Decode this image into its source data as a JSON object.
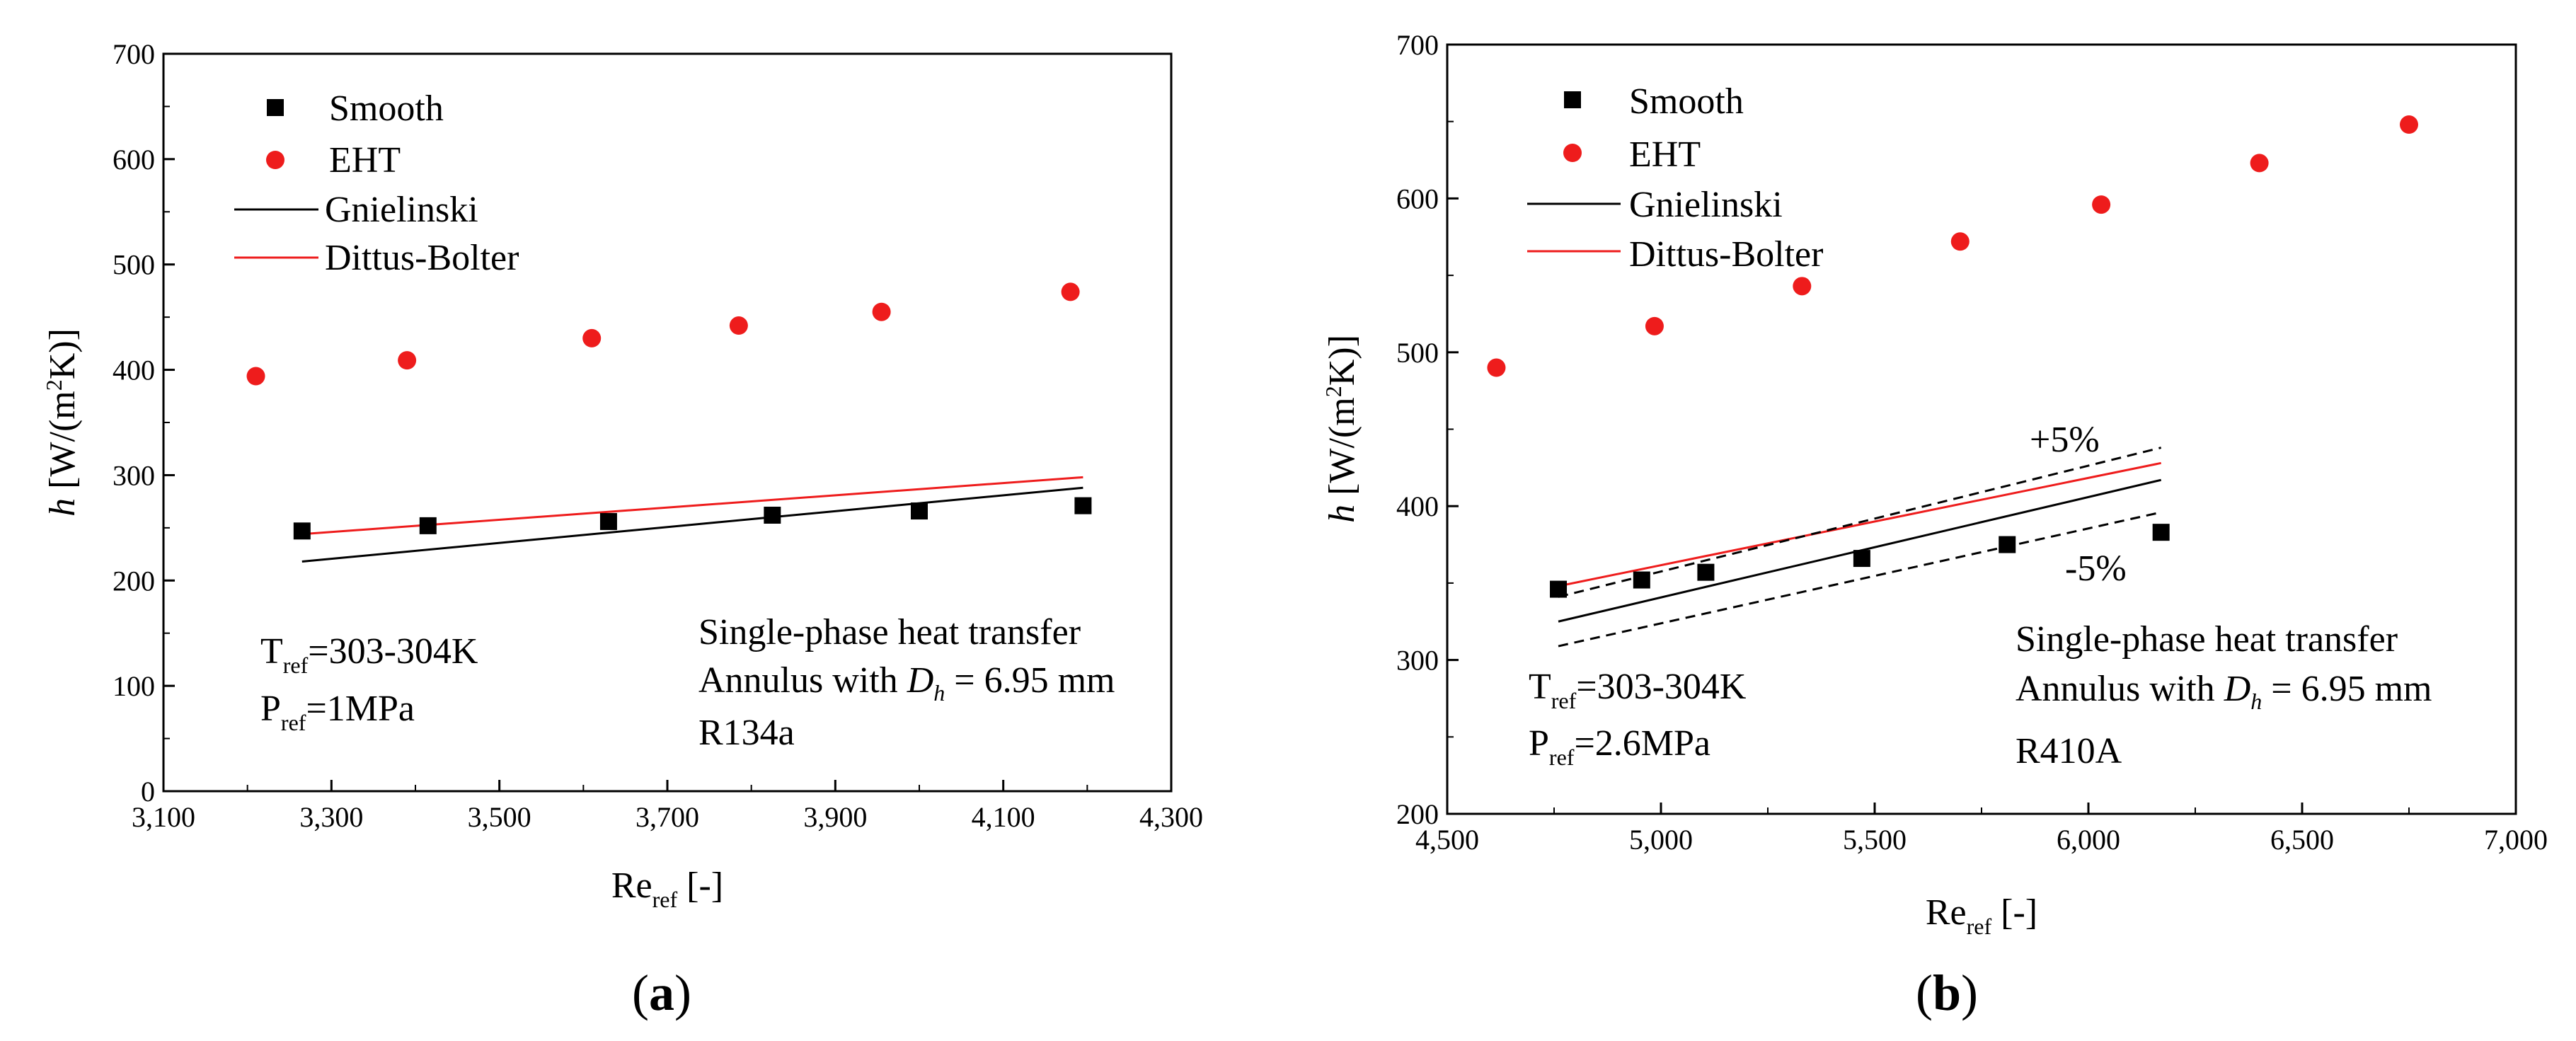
{
  "chart_data": [
    {
      "type": "scatter",
      "panel_label": "a",
      "xlim": [
        3100,
        4300
      ],
      "ylim": [
        0,
        700
      ],
      "xticks": [
        "3,100",
        "3,300",
        "3,500",
        "3,700",
        "3,900",
        "4,100",
        "4,300"
      ],
      "yticks": [
        "0",
        "100",
        "200",
        "300",
        "400",
        "500",
        "600",
        "700"
      ],
      "xlabel": {
        "main": "Re",
        "sub": "ref",
        "unit": " [-]"
      },
      "ylabel": {
        "var": "h",
        "pre": " [W/(m",
        "sup": "2",
        "post": "K)]"
      },
      "legend": {
        "smooth": "Smooth",
        "eht": "EHT",
        "gnielinski": "Gnielinski",
        "dittus": "Dittus-Bolter"
      },
      "series": [
        {
          "name": "Smooth",
          "x": [
            3265,
            3415,
            3630,
            3825,
            4000,
            4195
          ],
          "y": [
            247,
            252,
            256,
            262,
            266,
            271
          ]
        },
        {
          "name": "EHT",
          "x": [
            3210,
            3390,
            3610,
            3785,
            3955,
            4180
          ],
          "y": [
            394,
            409,
            430,
            442,
            455,
            474
          ]
        }
      ],
      "lines": [
        {
          "name": "Gnielinski",
          "x": [
            3265,
            4195
          ],
          "y": [
            218,
            288
          ]
        },
        {
          "name": "Dittus-Bolter",
          "x": [
            3265,
            4195
          ],
          "y": [
            244,
            298
          ]
        }
      ],
      "annotations": {
        "t_pre": "T",
        "t_sub": "ref",
        "t_post": "=303-304K",
        "p_pre": "P",
        "p_sub": "ref",
        "p_post": "=1MPa",
        "line1": "Single-phase heat transfer",
        "line2_pre": "Annulus with ",
        "line2_var": "D",
        "line2_sub": "h",
        "line2_post": " = 6.95 mm",
        "fluid": "R134a"
      }
    },
    {
      "type": "scatter",
      "panel_label": "b",
      "xlim": [
        4500,
        7000
      ],
      "ylim": [
        200,
        700
      ],
      "xticks": [
        "4,500",
        "5,000",
        "5,500",
        "6,000",
        "6,500",
        "7,000"
      ],
      "yticks": [
        "200",
        "300",
        "400",
        "500",
        "600",
        "700"
      ],
      "xlabel": {
        "main": "Re",
        "sub": "ref",
        "unit": " [-]"
      },
      "ylabel": {
        "var": "h",
        "pre": " [W/(m",
        "sup": "2",
        "post": "K)]"
      },
      "legend": {
        "smooth": "Smooth",
        "eht": "EHT",
        "gnielinski": "Gnielinski",
        "dittus": "Dittus-Bolter"
      },
      "series": [
        {
          "name": "Smooth",
          "x": [
            4760,
            4955,
            5105,
            5470,
            5810,
            6170
          ],
          "y": [
            346,
            352,
            357,
            366,
            375,
            383
          ]
        },
        {
          "name": "EHT",
          "x": [
            4615,
            4985,
            5330,
            5700,
            6030,
            6400,
            6750
          ],
          "y": [
            490,
            517,
            543,
            572,
            596,
            623,
            648
          ]
        }
      ],
      "lines": [
        {
          "name": "Gnielinski",
          "x": [
            4760,
            6170
          ],
          "y": [
            325,
            417
          ]
        },
        {
          "name": "Dittus-Bolter",
          "x": [
            4760,
            6170
          ],
          "y": [
            348,
            428
          ]
        },
        {
          "name": "+5%",
          "x": [
            4760,
            6170
          ],
          "y": [
            341,
            438
          ]
        },
        {
          "name": "-5%",
          "x": [
            4760,
            6170
          ],
          "y": [
            309,
            396
          ]
        }
      ],
      "band_labels": {
        "plus": "+5%",
        "minus": "-5%"
      },
      "annotations": {
        "t_pre": "T",
        "t_sub": "ref",
        "t_post": "=303-304K",
        "p_pre": "P",
        "p_sub": "ref",
        "p_post": "=2.6MPa",
        "line1": "Single-phase heat transfer",
        "line2_pre": "Annulus with ",
        "line2_var": "D",
        "line2_sub": "h",
        "line2_post": " = 6.95 mm",
        "fluid": "R410A"
      }
    }
  ],
  "colors": {
    "eht": "#ee1c1c",
    "dittus": "#ee1c1c",
    "smooth": "#000000",
    "axis": "#000000"
  }
}
